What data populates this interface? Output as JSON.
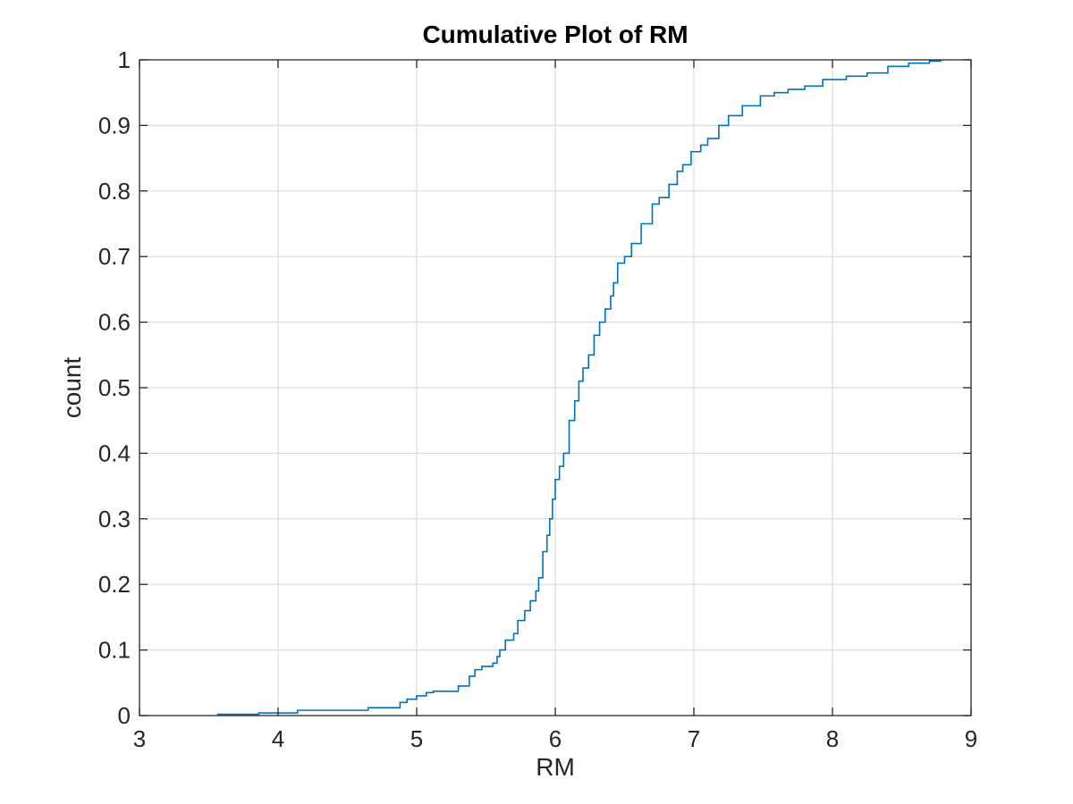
{
  "chart_data": {
    "type": "line",
    "title": "Cumulative Plot of RM",
    "xlabel": "RM",
    "ylabel": "count",
    "xlim": [
      3,
      9
    ],
    "ylim": [
      0,
      1
    ],
    "xticks": [
      3,
      4,
      5,
      6,
      7,
      8,
      9
    ],
    "xtick_labels": [
      "3",
      "4",
      "5",
      "6",
      "7",
      "8",
      "9"
    ],
    "yticks": [
      0,
      0.1,
      0.2,
      0.3,
      0.4,
      0.5,
      0.6,
      0.7,
      0.8,
      0.9,
      1
    ],
    "ytick_labels": [
      "0",
      "0.1",
      "0.2",
      "0.3",
      "0.4",
      "0.5",
      "0.6",
      "0.7",
      "0.8",
      "0.9",
      "1"
    ],
    "grid": true,
    "step": true,
    "color": "#0072BD",
    "series": [
      {
        "x": [
          3.56,
          3.86,
          4.14,
          4.65,
          4.88,
          4.93,
          5.0,
          5.07,
          5.12,
          5.3,
          5.38,
          5.42,
          5.47,
          5.55,
          5.58,
          5.6,
          5.64,
          5.7,
          5.73,
          5.78,
          5.82,
          5.86,
          5.88,
          5.91,
          5.94,
          5.96,
          5.98,
          6.0,
          6.03,
          6.06,
          6.1,
          6.14,
          6.17,
          6.2,
          6.24,
          6.28,
          6.32,
          6.36,
          6.4,
          6.42,
          6.45,
          6.5,
          6.55,
          6.62,
          6.7,
          6.75,
          6.82,
          6.88,
          6.92,
          6.98,
          7.05,
          7.1,
          7.18,
          7.25,
          7.35,
          7.48,
          7.58,
          7.68,
          7.8,
          7.93,
          8.1,
          8.25,
          8.4,
          8.55,
          8.7,
          8.78
        ],
        "y": [
          0.002,
          0.004,
          0.008,
          0.012,
          0.02,
          0.025,
          0.03,
          0.035,
          0.037,
          0.045,
          0.06,
          0.07,
          0.075,
          0.08,
          0.09,
          0.1,
          0.115,
          0.125,
          0.145,
          0.16,
          0.175,
          0.19,
          0.21,
          0.25,
          0.275,
          0.3,
          0.33,
          0.36,
          0.38,
          0.4,
          0.45,
          0.48,
          0.51,
          0.53,
          0.55,
          0.58,
          0.6,
          0.62,
          0.64,
          0.66,
          0.69,
          0.7,
          0.72,
          0.75,
          0.78,
          0.79,
          0.81,
          0.83,
          0.84,
          0.86,
          0.87,
          0.88,
          0.9,
          0.915,
          0.93,
          0.945,
          0.95,
          0.955,
          0.96,
          0.97,
          0.975,
          0.98,
          0.99,
          0.995,
          0.998,
          1.0
        ]
      }
    ]
  }
}
